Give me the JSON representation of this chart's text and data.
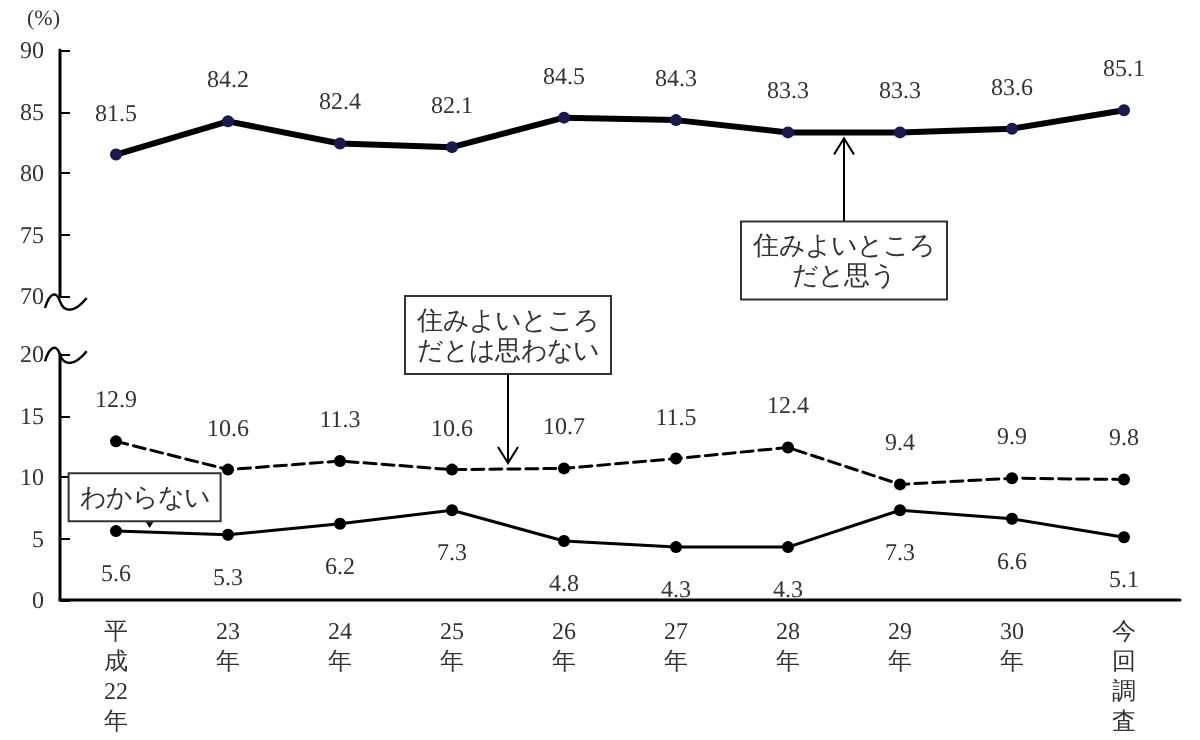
{
  "chart_data": [
    {
      "type": "line",
      "ylabel": "(%)",
      "categories": [
        "平成22年",
        "23年",
        "24年",
        "25年",
        "26年",
        "27年",
        "28年",
        "29年",
        "30年",
        "今回調査"
      ],
      "series": [
        {
          "name": "住みよいところだと思う",
          "color": "#000000",
          "values": [
            81.5,
            84.2,
            82.4,
            82.1,
            84.5,
            84.3,
            83.3,
            83.3,
            83.6,
            85.1
          ]
        }
      ],
      "ylim": [
        70,
        90
      ],
      "yticks": [
        70,
        75,
        80,
        85,
        90
      ],
      "tick_labels": "y",
      "data_labels": true,
      "marker": "circle"
    },
    {
      "type": "line",
      "categories": [
        "平成22年",
        "23年",
        "24年",
        "25年",
        "26年",
        "27年",
        "28年",
        "29年",
        "30年",
        "今回調査"
      ],
      "series": [
        {
          "name": "住みよいところだとは思わない",
          "color": "#000000",
          "line_style": "dashed",
          "values": [
            12.9,
            10.6,
            11.3,
            10.6,
            10.7,
            11.5,
            12.4,
            9.4,
            9.9,
            9.8
          ]
        },
        {
          "name": "わからない",
          "color": "#000000",
          "line_style": "solid",
          "values": [
            5.6,
            5.3,
            6.2,
            7.3,
            4.8,
            4.3,
            4.3,
            7.3,
            6.6,
            5.1
          ]
        }
      ],
      "ylim": [
        0,
        20
      ],
      "yticks": [
        0,
        5,
        10,
        15,
        20
      ],
      "data_labels": true,
      "marker": "circle"
    }
  ]
}
